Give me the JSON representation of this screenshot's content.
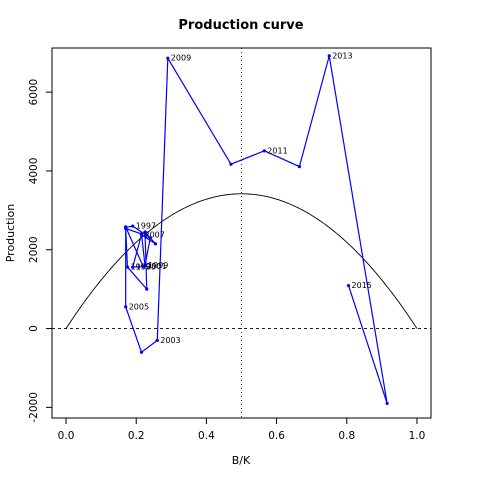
{
  "chart_data": {
    "type": "line",
    "title": "Production curve",
    "xlabel": "B/K",
    "ylabel": "Production",
    "xlim": [
      -0.04,
      1.04
    ],
    "ylim": [
      -2270,
      7120
    ],
    "x_ticks": [
      0.0,
      0.2,
      0.4,
      0.6,
      0.8,
      1.0
    ],
    "x_tick_labels": [
      "0.0",
      "0.2",
      "0.4",
      "0.6",
      "0.8",
      "1.0"
    ],
    "y_ticks": [
      -2000,
      0,
      2000,
      4000,
      6000
    ],
    "y_tick_labels": [
      "-2000",
      "0",
      "2000",
      "4000",
      "6000"
    ],
    "grid": false,
    "reference_lines": {
      "vertical_x": 0.5,
      "horizontal_y": 0
    },
    "curve": {
      "type": "parabola",
      "formula": "4*MSY*x*(1-x)",
      "MSY": 3420,
      "color": "#000000"
    },
    "series": [
      {
        "color": "#0000ff",
        "points": [
          {
            "x": 0.17,
            "y": 2570,
            "label": ""
          },
          {
            "x": 0.19,
            "y": 2600,
            "label": "1997"
          },
          {
            "x": 0.24,
            "y": 2300,
            "label": ""
          },
          {
            "x": 0.225,
            "y": 1600,
            "label": "1999"
          },
          {
            "x": 0.215,
            "y": 2400,
            "label": ""
          },
          {
            "x": 0.17,
            "y": 2540,
            "label": ""
          },
          {
            "x": 0.175,
            "y": 1560,
            "label": "1993"
          },
          {
            "x": 0.23,
            "y": 1000,
            "label": ""
          },
          {
            "x": 0.225,
            "y": 2450,
            "label": ""
          },
          {
            "x": 0.255,
            "y": 2150,
            "label": ""
          },
          {
            "x": 0.215,
            "y": 2380,
            "label": "2007"
          },
          {
            "x": 0.19,
            "y": 1560,
            "label": "1995"
          },
          {
            "x": 0.22,
            "y": 1570,
            "label": "2001"
          },
          {
            "x": 0.17,
            "y": 2580,
            "label": ""
          },
          {
            "x": 0.17,
            "y": 550,
            "label": "2005"
          },
          {
            "x": 0.215,
            "y": -600,
            "label": ""
          },
          {
            "x": 0.26,
            "y": -300,
            "label": "2003"
          },
          {
            "x": 0.29,
            "y": 6860,
            "label": "2009"
          },
          {
            "x": 0.47,
            "y": 4170,
            "label": ""
          },
          {
            "x": 0.565,
            "y": 4510,
            "label": "2011"
          },
          {
            "x": 0.665,
            "y": 4110,
            "label": ""
          },
          {
            "x": 0.75,
            "y": 6920,
            "label": "2013"
          },
          {
            "x": 0.915,
            "y": -1900,
            "label": ""
          },
          {
            "x": 0.805,
            "y": 1090,
            "label": "2015"
          }
        ]
      }
    ]
  }
}
